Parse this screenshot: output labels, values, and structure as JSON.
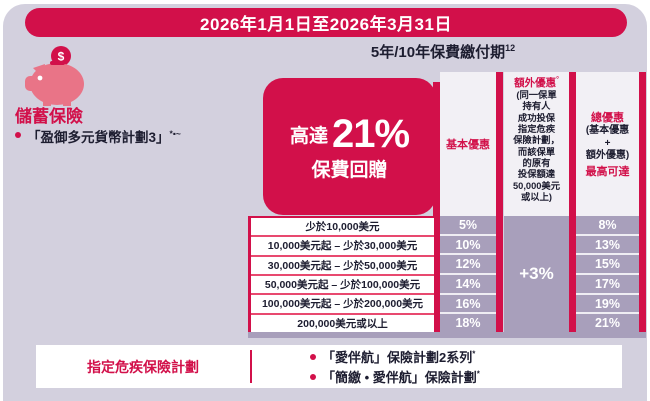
{
  "banner": {
    "title": "2026年1月1日至2026年3月31日"
  },
  "payment_period": {
    "text": "5年/10年保費繳付期",
    "sup": "12"
  },
  "savings": {
    "title": "儲蓄保險",
    "plan": "「盈御多元貨幣計劃3」",
    "plan_sup": "*▪~"
  },
  "promo": {
    "prefix": "高達",
    "value": "21%",
    "suffix": "保費回贈"
  },
  "table": {
    "columns": {
      "basic": "基本優惠",
      "extra_title": "額外優惠",
      "extra_sup": "°",
      "extra_note": "(同一保單\n持有人\n成功投保\n指定危疾\n保險計劃，\n而該保單\n的原有\n投保額達\n50,000美元\n或以上)",
      "total_title": "總優惠",
      "total_note": "(基本優惠\n+\n額外優惠)",
      "total_footer": "最高可達"
    },
    "extra_merged": "+3%",
    "rows": [
      {
        "label": "少於10,000美元",
        "basic": "5%",
        "total": "8%"
      },
      {
        "label": "10,000美元起 – 少於30,000美元",
        "basic": "10%",
        "total": "13%"
      },
      {
        "label": "30,000美元起 – 少於50,000美元",
        "basic": "12%",
        "total": "15%"
      },
      {
        "label": "50,000美元起 – 少於100,000美元",
        "basic": "14%",
        "total": "17%"
      },
      {
        "label": "100,000美元起 – 少於200,000美元",
        "basic": "16%",
        "total": "19%"
      },
      {
        "label": "200,000美元或以上",
        "basic": "18%",
        "total": "21%"
      }
    ]
  },
  "footer": {
    "label": "指定危疾保險計劃",
    "items": [
      {
        "text": "「愛伴航」保險計劃2系列",
        "sup": "*"
      },
      {
        "text": "「簡繳 • 愛伴航」保險計劃",
        "sup": "*"
      }
    ]
  },
  "icons": {
    "piggy": "piggy-bank-icon",
    "coin": "dollar-coin-icon"
  },
  "colors": {
    "crimson": "#d2104a",
    "lavender": "#d3d0de",
    "cell_purple": "#a89fbb",
    "header_bg": "#f2f0f5",
    "dark_text": "#1d1d30",
    "pig_pink": "#e97487"
  }
}
